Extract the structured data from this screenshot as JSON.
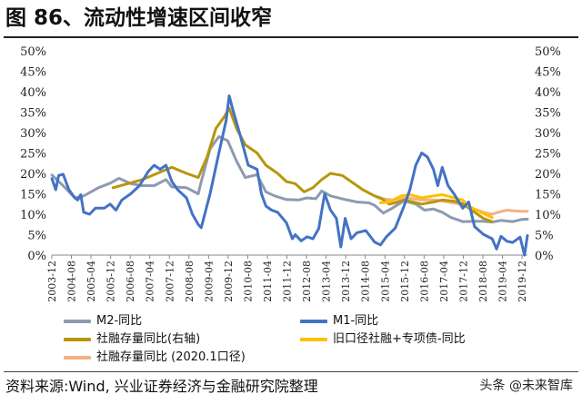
{
  "figure": {
    "title": "图 86、流动性增速区间收窄",
    "source": "资料来源:Wind, 兴业证券经济与金融研究院整理",
    "watermark": "头条 @未来智库"
  },
  "chart_data": {
    "type": "line",
    "title": "",
    "left_axis": {
      "min": 0,
      "max": 50,
      "step": 5,
      "format": "percent"
    },
    "right_axis": {
      "min": 0,
      "max": 50,
      "step": 5,
      "format": "percent"
    },
    "x_ticks": [
      "2003-12",
      "2004-08",
      "2005-04",
      "2005-12",
      "2006-08",
      "2007-04",
      "2007-12",
      "2008-08",
      "2009-04",
      "2009-12",
      "2010-08",
      "2011-04",
      "2011-12",
      "2012-08",
      "2013-04",
      "2013-12",
      "2014-08",
      "2015-04",
      "2015-12",
      "2016-08",
      "2017-04",
      "2017-12",
      "2018-08",
      "2019-04",
      "2019-12"
    ],
    "x_range": [
      2003.917,
      2020.1
    ],
    "series": [
      {
        "name": "M2-同比",
        "color": "#8c9bb1",
        "axis": "left",
        "width": 3,
        "points": [
          [
            2003.92,
            19.6
          ],
          [
            2004.3,
            17.0
          ],
          [
            2004.7,
            14.0
          ],
          [
            2005.0,
            14.5
          ],
          [
            2005.5,
            16.5
          ],
          [
            2005.9,
            17.6
          ],
          [
            2006.2,
            18.8
          ],
          [
            2006.6,
            17.5
          ],
          [
            2007.0,
            17.0
          ],
          [
            2007.4,
            17.0
          ],
          [
            2007.8,
            18.5
          ],
          [
            2008.0,
            16.7
          ],
          [
            2008.5,
            16.5
          ],
          [
            2008.9,
            15.0
          ],
          [
            2009.0,
            18.0
          ],
          [
            2009.3,
            26.0
          ],
          [
            2009.6,
            29.0
          ],
          [
            2009.9,
            28.0
          ],
          [
            2010.2,
            23.0
          ],
          [
            2010.5,
            19.0
          ],
          [
            2010.9,
            19.7
          ],
          [
            2011.2,
            15.5
          ],
          [
            2011.5,
            14.5
          ],
          [
            2011.9,
            13.6
          ],
          [
            2012.3,
            13.5
          ],
          [
            2012.6,
            14.0
          ],
          [
            2012.9,
            13.8
          ],
          [
            2013.1,
            15.7
          ],
          [
            2013.4,
            14.5
          ],
          [
            2013.9,
            13.6
          ],
          [
            2014.3,
            13.0
          ],
          [
            2014.7,
            12.8
          ],
          [
            2014.9,
            12.2
          ],
          [
            2015.2,
            10.3
          ],
          [
            2015.5,
            11.5
          ],
          [
            2015.9,
            13.3
          ],
          [
            2016.3,
            12.5
          ],
          [
            2016.6,
            11.0
          ],
          [
            2016.9,
            11.3
          ],
          [
            2017.2,
            10.5
          ],
          [
            2017.5,
            9.2
          ],
          [
            2017.9,
            8.2
          ],
          [
            2018.3,
            8.3
          ],
          [
            2018.6,
            8.3
          ],
          [
            2018.9,
            8.1
          ],
          [
            2019.2,
            8.5
          ],
          [
            2019.6,
            8.2
          ],
          [
            2019.9,
            8.7
          ],
          [
            2020.1,
            8.8
          ]
        ]
      },
      {
        "name": "M1-同比",
        "color": "#4472c4",
        "axis": "left",
        "width": 3,
        "points": [
          [
            2003.92,
            18.7
          ],
          [
            2004.05,
            16.0
          ],
          [
            2004.15,
            19.5
          ],
          [
            2004.3,
            19.8
          ],
          [
            2004.5,
            16.0
          ],
          [
            2004.7,
            14.0
          ],
          [
            2004.8,
            13.5
          ],
          [
            2004.9,
            14.8
          ],
          [
            2005.0,
            10.5
          ],
          [
            2005.2,
            10.0
          ],
          [
            2005.4,
            11.5
          ],
          [
            2005.7,
            11.5
          ],
          [
            2005.9,
            12.5
          ],
          [
            2006.1,
            11.0
          ],
          [
            2006.3,
            13.5
          ],
          [
            2006.6,
            15.0
          ],
          [
            2006.9,
            17.0
          ],
          [
            2007.2,
            20.5
          ],
          [
            2007.4,
            22.0
          ],
          [
            2007.6,
            21.0
          ],
          [
            2007.8,
            22.0
          ],
          [
            2008.0,
            18.0
          ],
          [
            2008.2,
            16.0
          ],
          [
            2008.5,
            14.0
          ],
          [
            2008.7,
            10.0
          ],
          [
            2008.9,
            7.5
          ],
          [
            2009.0,
            6.7
          ],
          [
            2009.3,
            15.0
          ],
          [
            2009.6,
            25.0
          ],
          [
            2009.85,
            33.0
          ],
          [
            2009.95,
            39.0
          ],
          [
            2010.1,
            35.0
          ],
          [
            2010.3,
            30.0
          ],
          [
            2010.6,
            22.0
          ],
          [
            2010.9,
            21.0
          ],
          [
            2011.05,
            15.0
          ],
          [
            2011.2,
            12.0
          ],
          [
            2011.4,
            11.0
          ],
          [
            2011.6,
            10.5
          ],
          [
            2011.9,
            7.9
          ],
          [
            2012.1,
            4.0
          ],
          [
            2012.2,
            5.0
          ],
          [
            2012.4,
            3.5
          ],
          [
            2012.6,
            4.5
          ],
          [
            2012.8,
            4.0
          ],
          [
            2013.0,
            6.5
          ],
          [
            2013.2,
            15.0
          ],
          [
            2013.4,
            11.0
          ],
          [
            2013.6,
            9.0
          ],
          [
            2013.75,
            2.0
          ],
          [
            2013.9,
            9.0
          ],
          [
            2014.1,
            4.0
          ],
          [
            2014.3,
            5.5
          ],
          [
            2014.6,
            6.0
          ],
          [
            2014.9,
            3.2
          ],
          [
            2015.1,
            2.5
          ],
          [
            2015.3,
            4.5
          ],
          [
            2015.6,
            6.6
          ],
          [
            2015.9,
            12.0
          ],
          [
            2016.1,
            16.0
          ],
          [
            2016.3,
            22.0
          ],
          [
            2016.5,
            25.0
          ],
          [
            2016.7,
            24.0
          ],
          [
            2016.9,
            21.0
          ],
          [
            2017.05,
            17.0
          ],
          [
            2017.2,
            21.5
          ],
          [
            2017.4,
            17.0
          ],
          [
            2017.6,
            15.0
          ],
          [
            2017.9,
            11.5
          ],
          [
            2018.1,
            13.0
          ],
          [
            2018.3,
            7.0
          ],
          [
            2018.6,
            5.1
          ],
          [
            2018.9,
            4.0
          ],
          [
            2019.05,
            1.5
          ],
          [
            2019.2,
            4.6
          ],
          [
            2019.4,
            3.4
          ],
          [
            2019.6,
            3.1
          ],
          [
            2019.85,
            4.4
          ],
          [
            2020.0,
            0.0
          ],
          [
            2020.1,
            4.8
          ]
        ]
      },
      {
        "name": "社融存量同比(右轴)",
        "color": "#b8960c",
        "axis": "right",
        "width": 3,
        "points": [
          [
            2006.0,
            16.5
          ],
          [
            2006.5,
            17.5
          ],
          [
            2007.0,
            18.5
          ],
          [
            2007.5,
            20.0
          ],
          [
            2008.0,
            21.5
          ],
          [
            2008.5,
            20.0
          ],
          [
            2008.9,
            19.0
          ],
          [
            2009.2,
            24.0
          ],
          [
            2009.5,
            31.0
          ],
          [
            2009.8,
            34.0
          ],
          [
            2009.95,
            36.0
          ],
          [
            2010.2,
            31.0
          ],
          [
            2010.5,
            27.0
          ],
          [
            2010.9,
            25.0
          ],
          [
            2011.2,
            22.0
          ],
          [
            2011.6,
            20.0
          ],
          [
            2011.9,
            18.0
          ],
          [
            2012.2,
            17.5
          ],
          [
            2012.5,
            15.5
          ],
          [
            2012.8,
            16.5
          ],
          [
            2013.1,
            18.5
          ],
          [
            2013.4,
            20.0
          ],
          [
            2013.8,
            19.5
          ],
          [
            2014.1,
            18.0
          ],
          [
            2014.5,
            16.0
          ],
          [
            2014.9,
            14.5
          ],
          [
            2015.1,
            14.0
          ],
          [
            2015.4,
            12.5
          ],
          [
            2015.7,
            13.0
          ],
          [
            2015.9,
            13.5
          ],
          [
            2016.2,
            13.0
          ],
          [
            2016.5,
            12.5
          ],
          [
            2016.9,
            13.0
          ],
          [
            2017.2,
            13.5
          ],
          [
            2017.6,
            13.2
          ],
          [
            2017.9,
            12.6
          ],
          [
            2018.2,
            11.0
          ],
          [
            2018.6,
            9.0
          ],
          [
            2018.9,
            8.2
          ]
        ]
      },
      {
        "name": "旧口径社融+专项债-同比",
        "color": "#ffc000",
        "axis": "right",
        "width": 3,
        "points": [
          [
            2015.1,
            12.8
          ],
          [
            2015.4,
            13.0
          ],
          [
            2015.8,
            14.5
          ],
          [
            2016.1,
            14.8
          ],
          [
            2016.5,
            14.0
          ],
          [
            2016.9,
            14.5
          ],
          [
            2017.2,
            14.8
          ],
          [
            2017.5,
            14.2
          ],
          [
            2017.9,
            13.5
          ],
          [
            2018.1,
            12.0
          ],
          [
            2018.5,
            10.5
          ],
          [
            2018.9,
            9.2
          ]
        ]
      },
      {
        "name": "社融存量同比 (2020.1口径)",
        "color": "#f4b183",
        "axis": "right",
        "width": 3,
        "points": [
          [
            2015.0,
            14.0
          ],
          [
            2015.5,
            13.5
          ],
          [
            2016.0,
            14.0
          ],
          [
            2016.5,
            13.5
          ],
          [
            2017.0,
            13.5
          ],
          [
            2017.4,
            13.0
          ],
          [
            2017.8,
            12.5
          ],
          [
            2018.2,
            11.5
          ],
          [
            2018.6,
            10.5
          ],
          [
            2018.9,
            10.0
          ],
          [
            2019.1,
            10.5
          ],
          [
            2019.4,
            11.0
          ],
          [
            2019.7,
            10.8
          ],
          [
            2019.9,
            10.7
          ],
          [
            2020.1,
            10.7
          ]
        ]
      }
    ]
  },
  "legend": [
    {
      "label": "M2-同比",
      "color": "#8c9bb1"
    },
    {
      "label": "M1-同比",
      "color": "#4472c4"
    },
    {
      "label": "社融存量同比(右轴)",
      "color": "#b8960c"
    },
    {
      "label": "旧口径社融+专项债-同比",
      "color": "#ffc000"
    },
    {
      "label": "社融存量同比 (2020.1口径)",
      "color": "#f4b183"
    }
  ]
}
